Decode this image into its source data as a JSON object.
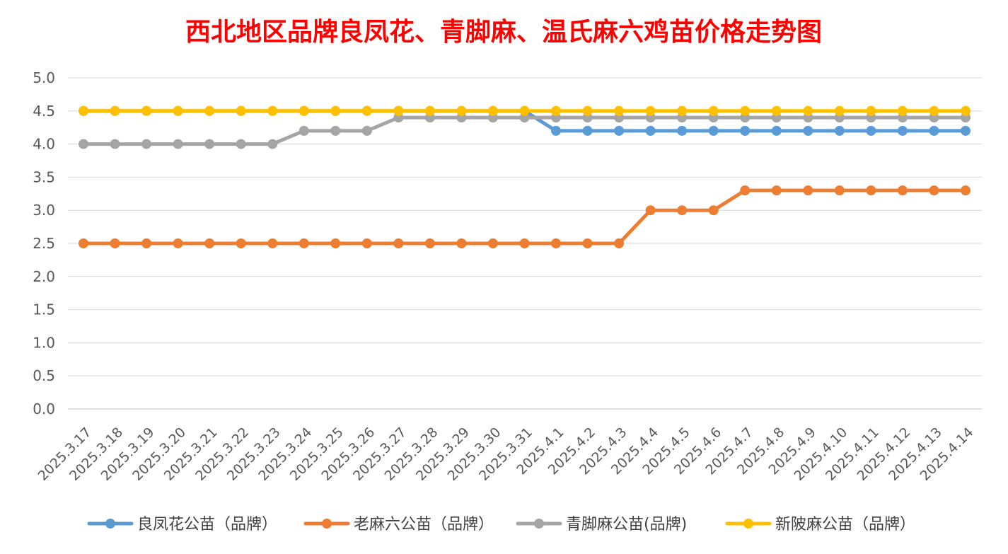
{
  "chart_data": {
    "type": "line",
    "title": "西北地区品牌良凤花、青脚麻、温氏麻六鸡苗价格走势图",
    "xlabel": "",
    "ylabel": "",
    "ylim": [
      0,
      5.0
    ],
    "y_ticks": [
      "0.0",
      "0.5",
      "1.0",
      "1.5",
      "2.0",
      "2.5",
      "3.0",
      "3.5",
      "4.0",
      "4.5",
      "5.0"
    ],
    "grid": "horizontal",
    "legend_position": "bottom",
    "categories": [
      "2025.3.17",
      "2025.3.18",
      "2025.3.19",
      "2025.3.20",
      "2025.3.21",
      "2025.3.22",
      "2025.3.23",
      "2025.3.24",
      "2025.3.25",
      "2025.3.26",
      "2025.3.27",
      "2025.3.28",
      "2025.3.29",
      "2025.3.30",
      "2025.3.31",
      "2025.4.1",
      "2025.4.2",
      "2025.4.3",
      "2025.4.4",
      "2025.4.5",
      "2025.4.6",
      "2025.4.7",
      "2025.4.8",
      "2025.4.9",
      "2025.4.10",
      "2025.4.11",
      "2025.4.12",
      "2025.4.13",
      "2025.4.14"
    ],
    "series": [
      {
        "name": "良凤花公苗（品牌）",
        "color": "#5b9bd5",
        "values": [
          4.5,
          4.5,
          4.5,
          4.5,
          4.5,
          4.5,
          4.5,
          4.5,
          4.5,
          4.5,
          4.5,
          4.5,
          4.5,
          4.5,
          4.5,
          4.2,
          4.2,
          4.2,
          4.2,
          4.2,
          4.2,
          4.2,
          4.2,
          4.2,
          4.2,
          4.2,
          4.2,
          4.2,
          4.2
        ]
      },
      {
        "name": "老麻六公苗（品牌）",
        "color": "#ed7d31",
        "values": [
          2.5,
          2.5,
          2.5,
          2.5,
          2.5,
          2.5,
          2.5,
          2.5,
          2.5,
          2.5,
          2.5,
          2.5,
          2.5,
          2.5,
          2.5,
          2.5,
          2.5,
          2.5,
          3.0,
          3.0,
          3.0,
          3.3,
          3.3,
          3.3,
          3.3,
          3.3,
          3.3,
          3.3,
          3.3
        ]
      },
      {
        "name": "青脚麻公苗(品牌)",
        "color": "#a5a5a5",
        "values": [
          4.0,
          4.0,
          4.0,
          4.0,
          4.0,
          4.0,
          4.0,
          4.2,
          4.2,
          4.2,
          4.4,
          4.4,
          4.4,
          4.4,
          4.4,
          4.4,
          4.4,
          4.4,
          4.4,
          4.4,
          4.4,
          4.4,
          4.4,
          4.4,
          4.4,
          4.4,
          4.4,
          4.4,
          4.4
        ]
      },
      {
        "name": "新陂麻公苗（品牌）",
        "color": "#ffc000",
        "values": [
          4.5,
          4.5,
          4.5,
          4.5,
          4.5,
          4.5,
          4.5,
          4.5,
          4.5,
          4.5,
          4.5,
          4.5,
          4.5,
          4.5,
          4.5,
          4.5,
          4.5,
          4.5,
          4.5,
          4.5,
          4.5,
          4.5,
          4.5,
          4.5,
          4.5,
          4.5,
          4.5,
          4.5,
          4.5
        ]
      }
    ]
  }
}
